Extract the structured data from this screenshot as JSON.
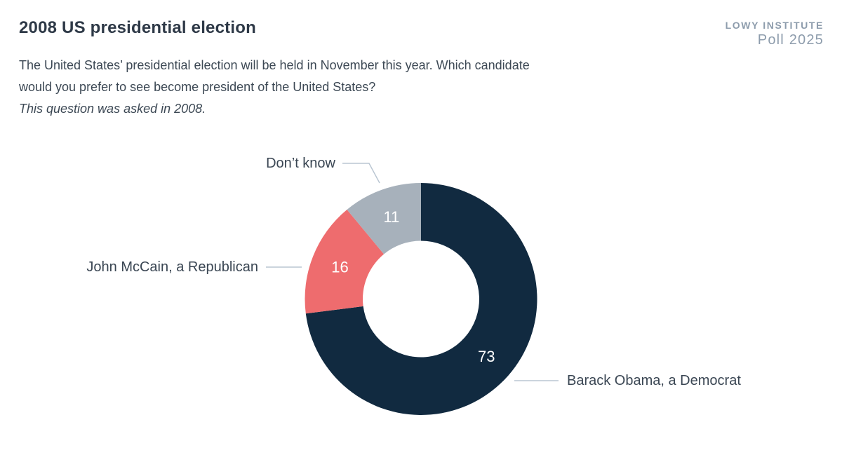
{
  "header": {
    "title": "2008 US presidential election",
    "brand_line1": "LOWY INSTITUTE",
    "brand_line2": "Poll 2025",
    "brand_color": "#8d9cac"
  },
  "question": {
    "line1": "The United States’ presidential election will be held in November this year. Which candidate",
    "line2": "would you prefer to see become president of the United States?",
    "note": "This question was asked in 2008."
  },
  "chart_data": {
    "type": "pie",
    "title": "2008 US presidential election",
    "donut": true,
    "start_angle_deg": 0,
    "direction": "clockwise",
    "unit": "percent",
    "total": 100,
    "segments": [
      {
        "label": "Barack Obama, a Democrat",
        "value": 73,
        "color": "#112a40"
      },
      {
        "label": "John McCain, a Republican",
        "value": 16,
        "color": "#ee6c6e"
      },
      {
        "label": "Don’t know",
        "value": 11,
        "color": "#a7b1bb"
      }
    ],
    "value_label_color": "#ffffff",
    "leader_line_color": "#bac6d2",
    "legend_position": "outside-labels"
  }
}
